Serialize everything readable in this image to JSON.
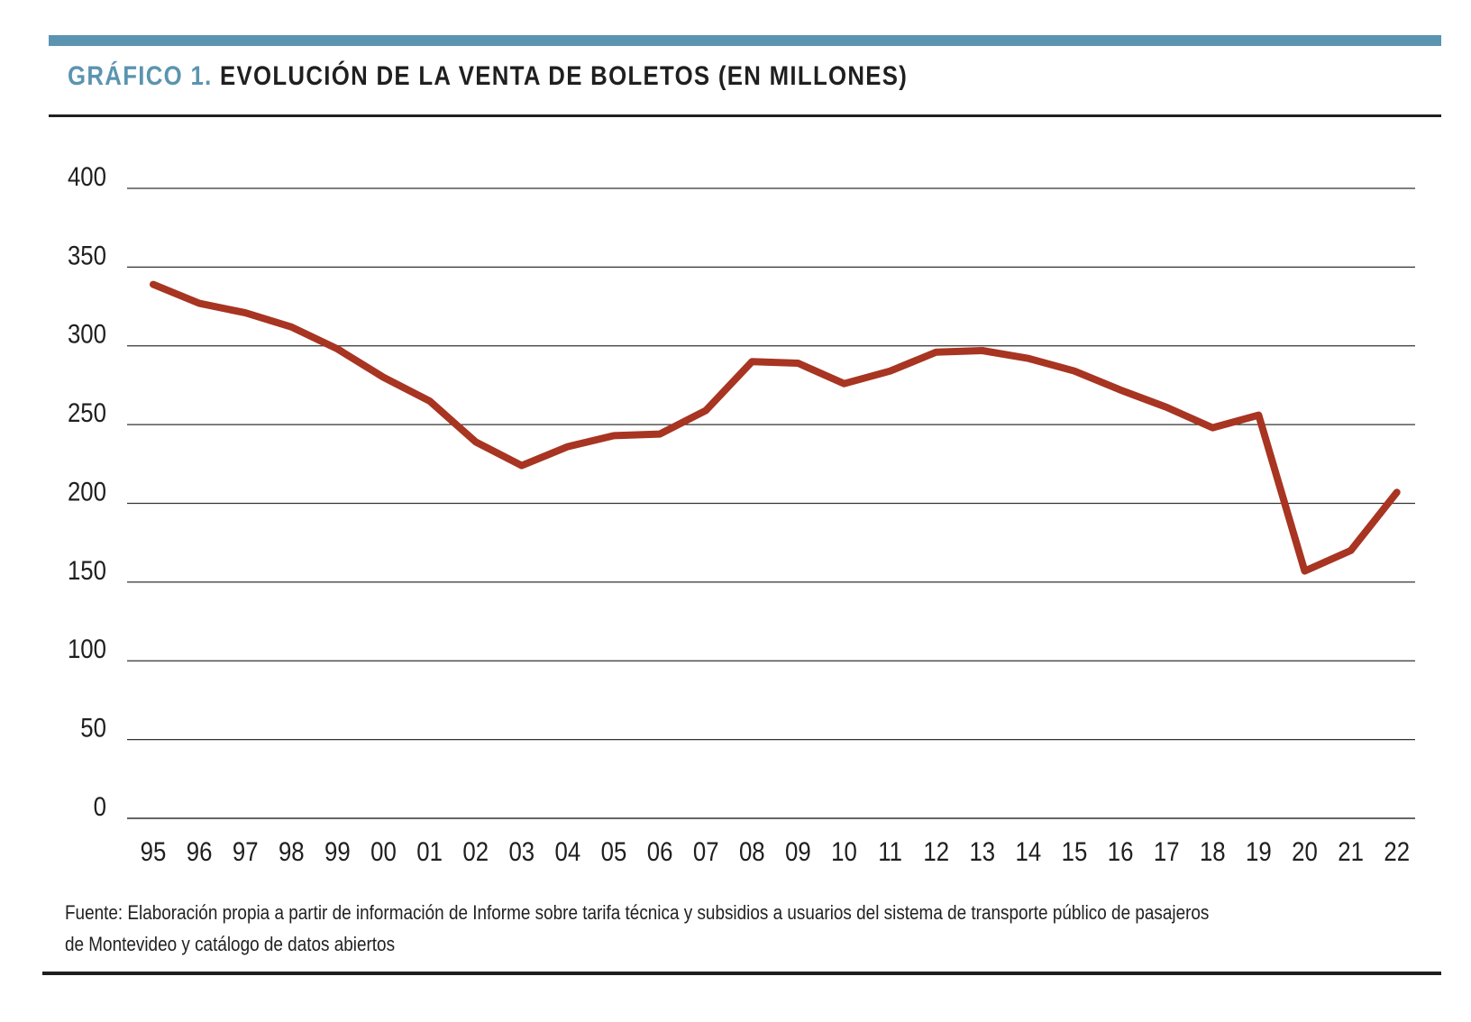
{
  "header": {
    "title_prefix": "GRÁFICO 1.",
    "title_main": "EVOLUCIÓN DE LA VENTA DE BOLETOS (EN MILLONES)"
  },
  "colors": {
    "accent": "#5b94b0",
    "line": "#a83422",
    "grid": "#333333"
  },
  "chart_data": {
    "type": "line",
    "title": "EVOLUCIÓN DE LA VENTA DE BOLETOS (EN MILLONES)",
    "xlabel": "",
    "ylabel": "",
    "ylim": [
      0,
      400
    ],
    "yticks": [
      0,
      50,
      100,
      150,
      200,
      250,
      300,
      350,
      400
    ],
    "grid": true,
    "legend": "none",
    "categories": [
      "95",
      "96",
      "97",
      "98",
      "99",
      "00",
      "01",
      "02",
      "03",
      "04",
      "05",
      "06",
      "07",
      "08",
      "09",
      "10",
      "11",
      "12",
      "13",
      "14",
      "15",
      "16",
      "17",
      "18",
      "19",
      "20",
      "21",
      "22"
    ],
    "series": [
      {
        "values": [
          339,
          327,
          321,
          312,
          298,
          280,
          265,
          239,
          224,
          236,
          243,
          244,
          259,
          290,
          289,
          276,
          284,
          296,
          297,
          292,
          284,
          272,
          261,
          248,
          256,
          157,
          170,
          207
        ]
      }
    ]
  },
  "source": {
    "line1": "Fuente: Elaboración propia a partir de información de Informe sobre tarifa técnica y subsidios a usuarios del sistema de transporte público de pasajeros",
    "line2": "de Montevideo y catálogo de datos abiertos"
  }
}
